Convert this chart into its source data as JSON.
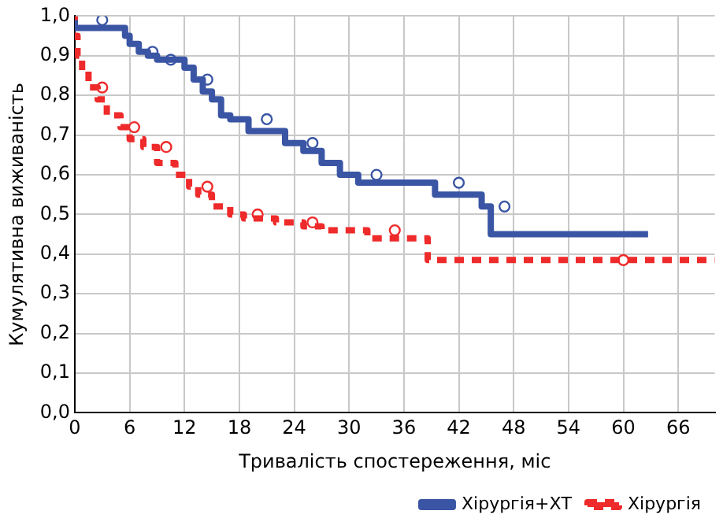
{
  "chart_data": {
    "type": "step",
    "xlabel": "Тривалість спостереження, міс",
    "ylabel": "Кумулятивна виживаність",
    "xlim": [
      0,
      70
    ],
    "xticks": [
      0,
      6,
      12,
      18,
      24,
      30,
      36,
      42,
      48,
      54,
      60,
      66
    ],
    "ylim": [
      0,
      1.0
    ],
    "yticks": [
      {
        "value": 0,
        "label": "0,0"
      },
      {
        "value": 0.1,
        "label": "0,1"
      },
      {
        "value": 0.2,
        "label": "0,2"
      },
      {
        "value": 0.3,
        "label": "0,3"
      },
      {
        "value": 0.4,
        "label": "0,4"
      },
      {
        "value": 0.5,
        "label": "0,5"
      },
      {
        "value": 0.6,
        "label": "0,6"
      },
      {
        "value": 0.7,
        "label": "0,7"
      },
      {
        "value": 0.8,
        "label": "0,8"
      },
      {
        "value": 0.9,
        "label": "0,9"
      },
      {
        "value": 1.0,
        "label": "1,0"
      }
    ],
    "grid": true,
    "legend": "bottom right",
    "marker": "none",
    "series": [
      {
        "name": "Хірургія+ХТ",
        "color": "#3a55a4",
        "line_style": "solid",
        "x": [
          0,
          5.5,
          6,
          7,
          8,
          9,
          12,
          13,
          14,
          15,
          16,
          17,
          19,
          23,
          25,
          27,
          29,
          31,
          39.4,
          44.5,
          45.5,
          48,
          62.7
        ],
        "values": [
          0.99,
          0.97,
          0.95,
          0.93,
          0.91,
          0.9,
          0.89,
          0.87,
          0.84,
          0.81,
          0.79,
          0.75,
          0.74,
          0.71,
          0.68,
          0.66,
          0.63,
          0.6,
          0.58,
          0.55,
          0.52,
          0.45,
          0.45
        ]
      },
      {
        "name": "Хірургія",
        "color": "#ee2a2a",
        "line_style": "dashed",
        "x": [
          0,
          0.3,
          0.8,
          1.5,
          2.5,
          3.5,
          5,
          6,
          7.5,
          9,
          11,
          12.5,
          13.5,
          15,
          17,
          18.5,
          22,
          25,
          27,
          32,
          38.6,
          56.7,
          70
        ],
        "values": [
          1.0,
          0.95,
          0.9,
          0.86,
          0.82,
          0.79,
          0.75,
          0.72,
          0.69,
          0.67,
          0.63,
          0.6,
          0.57,
          0.55,
          0.52,
          0.5,
          0.49,
          0.48,
          0.47,
          0.46,
          0.44,
          0.385,
          0.385
        ]
      },
      {
        "type": "scatter",
        "marker": "circle",
        "color": "#3a55a4",
        "x": [
          3,
          8.5,
          10.5,
          14.5,
          21,
          26,
          33,
          42,
          47
        ],
        "values": [
          0.99,
          0.91,
          0.89,
          0.84,
          0.74,
          0.68,
          0.6,
          0.58,
          0.52
        ]
      },
      {
        "type": "scatter",
        "marker": "circle",
        "color": "#ee2a2a",
        "x": [
          3,
          6.5,
          10,
          14.5,
          20,
          26,
          35,
          60
        ],
        "values": [
          0.82,
          0.72,
          0.67,
          0.57,
          0.5,
          0.48,
          0.46,
          0.385
        ]
      }
    ]
  }
}
